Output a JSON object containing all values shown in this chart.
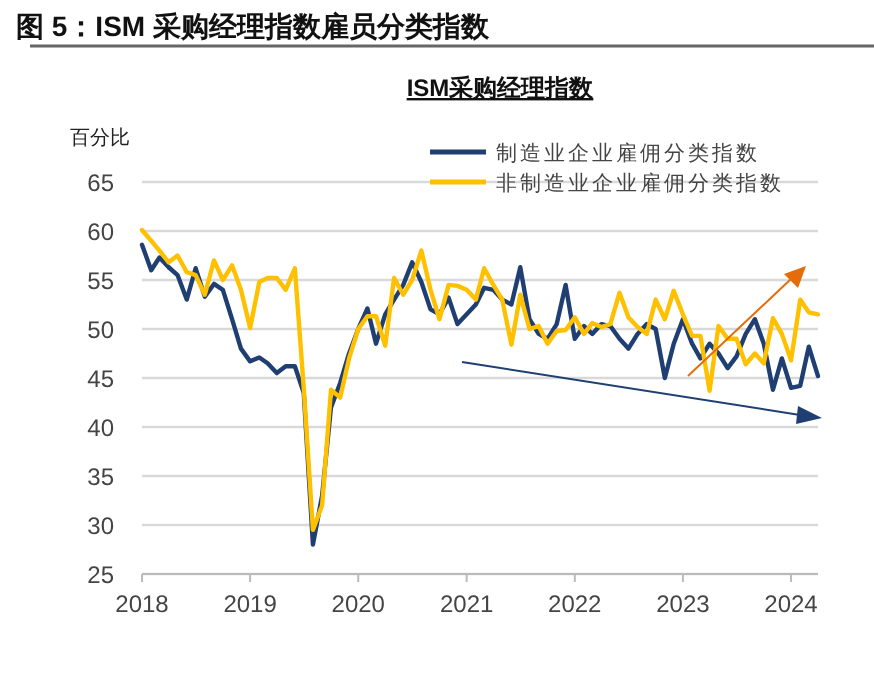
{
  "chart_data": {
    "type": "line",
    "title": "图 5：ISM 采购经理指数雇员分类指数",
    "subtitle": "ISM采购经理指数",
    "ylabel": "百分比",
    "x": [
      "2018-01",
      "2018-02",
      "2018-03",
      "2018-04",
      "2018-05",
      "2018-06",
      "2018-07",
      "2018-08",
      "2018-09",
      "2018-10",
      "2018-11",
      "2018-12",
      "2019-01",
      "2019-02",
      "2019-03",
      "2019-04",
      "2019-05",
      "2019-06",
      "2019-07",
      "2019-08",
      "2019-09",
      "2019-10",
      "2019-11",
      "2019-12",
      "2020-01",
      "2020-02",
      "2020-03",
      "2020-04",
      "2020-05",
      "2020-06",
      "2020-07",
      "2020-08",
      "2020-09",
      "2020-10",
      "2020-11",
      "2020-12",
      "2021-01",
      "2021-02",
      "2021-03",
      "2021-04",
      "2021-05",
      "2021-06",
      "2021-07",
      "2021-08",
      "2021-09",
      "2021-10",
      "2021-11",
      "2021-12",
      "2022-01",
      "2022-02",
      "2022-03",
      "2022-04",
      "2022-05",
      "2022-06",
      "2022-07",
      "2022-08",
      "2022-09",
      "2022-10",
      "2022-11",
      "2022-12",
      "2023-01",
      "2023-02",
      "2023-03",
      "2023-04",
      "2023-05",
      "2023-06",
      "2023-07",
      "2023-08",
      "2023-09",
      "2023-10",
      "2023-11",
      "2023-12",
      "2024-01",
      "2024-02",
      "2024-03",
      "2024-04"
    ],
    "series": [
      {
        "name": "制造业企业雇佣分类指数",
        "color": "#1f3f73",
        "values": [
          58.6,
          56.0,
          57.3,
          56.3,
          55.5,
          53.0,
          56.2,
          53.3,
          54.6,
          54.0,
          51.0,
          48.0,
          46.7,
          47.1,
          46.5,
          45.5,
          46.2,
          46.2,
          43.5,
          28.0,
          33.0,
          42.0,
          44.5,
          47.5,
          50.0,
          52.1,
          48.5,
          51.5,
          53.0,
          54.5,
          56.8,
          54.8,
          52.0,
          51.5,
          53.2,
          50.5,
          51.5,
          52.5,
          54.2,
          54.0,
          53.0,
          52.5,
          56.3,
          51.0,
          49.5,
          49.0,
          50.5,
          54.5,
          49.0,
          50.3,
          49.5,
          50.5,
          50.3,
          49.0,
          48.0,
          49.5,
          50.5,
          50.0,
          45.0,
          48.5,
          51.0,
          48.5,
          47.0,
          48.5,
          47.5,
          46.0,
          47.2,
          49.5,
          51.0,
          48.5,
          43.8,
          47.0,
          44.0,
          44.2,
          48.2,
          45.2
        ]
      },
      {
        "name": "非制造业企业雇佣分类指数",
        "color": "#ffc000",
        "values": [
          60.1,
          59.0,
          58.0,
          56.8,
          57.5,
          55.8,
          55.5,
          53.5,
          57.0,
          55.0,
          56.5,
          54.0,
          50.1,
          54.8,
          55.2,
          55.2,
          54.0,
          56.2,
          44.0,
          29.5,
          32.0,
          43.8,
          43.0,
          47.0,
          50.0,
          51.3,
          51.3,
          48.3,
          55.2,
          53.5,
          55.0,
          58.0,
          54.0,
          51.0,
          54.5,
          54.4,
          54.0,
          53.0,
          56.2,
          54.5,
          53.0,
          48.4,
          53.5,
          50.0,
          50.3,
          48.5,
          49.8,
          49.9,
          51.2,
          49.5,
          50.6,
          50.2,
          50.5,
          53.7,
          51.2,
          50.2,
          49.5,
          53.0,
          51.0,
          53.9,
          51.5,
          49.3,
          49.3,
          43.7,
          50.3,
          49.0,
          49.0,
          46.4,
          47.5,
          46.5,
          51.1,
          49.5,
          46.8,
          53.0,
          51.7,
          51.5
        ]
      }
    ],
    "xlim": [
      "2018-01",
      "2024-04"
    ],
    "xticks": [
      "2018",
      "2019",
      "2020",
      "2021",
      "2022",
      "2023",
      "2024"
    ],
    "ylim": [
      25,
      65
    ],
    "yticks": [
      25,
      30,
      35,
      40,
      45,
      50,
      55,
      60,
      65
    ],
    "grid": "y",
    "legend": "top right",
    "marker": "none",
    "line_style": "solid"
  }
}
